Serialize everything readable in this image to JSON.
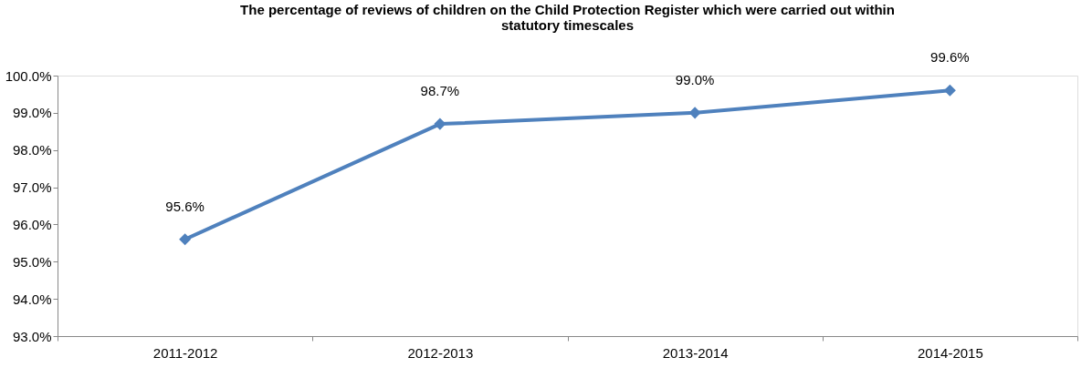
{
  "chart_data": {
    "type": "line",
    "title": "The percentage of reviews of children on the Child Protection Register which  were carried out within statutory timescales",
    "categories": [
      "2011-2012",
      "2012-2013",
      "2013-2014",
      "2014-2015"
    ],
    "series": [
      {
        "color": "#4f81bd",
        "values": [
          95.6,
          98.7,
          99.0,
          99.6
        ],
        "value_labels": [
          "95.6%",
          "98.7%",
          "99.0%",
          "99.6%"
        ]
      }
    ],
    "ylim": [
      93,
      100
    ],
    "yticks": [
      {
        "value": 93,
        "label": "93.0%"
      },
      {
        "value": 94,
        "label": "94.0%"
      },
      {
        "value": 95,
        "label": "95.0%"
      },
      {
        "value": 96,
        "label": "96.0%"
      },
      {
        "value": 97,
        "label": "97.0%"
      },
      {
        "value": 98,
        "label": "98.0%"
      },
      {
        "value": 99,
        "label": "99.0%"
      },
      {
        "value": 100,
        "label": "100.0%"
      }
    ],
    "grid": false,
    "marker": "diamond",
    "line_style": "solid"
  }
}
